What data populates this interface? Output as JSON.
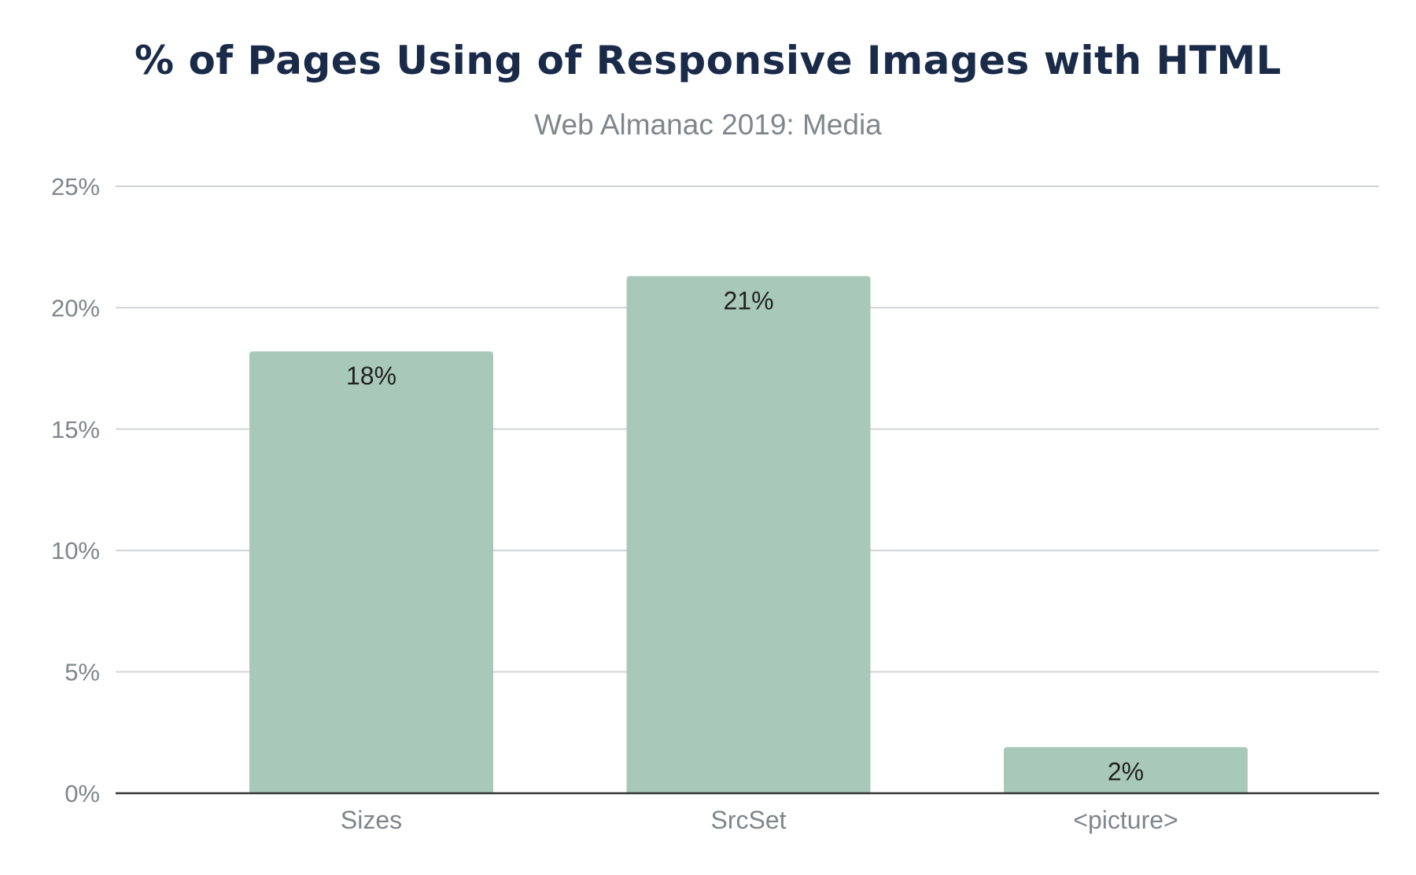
{
  "chart_data": {
    "type": "bar",
    "title": "% of Pages Using of Responsive Images with HTML",
    "subtitle": "Web Almanac 2019: Media",
    "categories": [
      "Sizes",
      "SrcSet",
      "<picture>"
    ],
    "values": [
      18.2,
      21.3,
      1.9
    ],
    "data_labels": [
      "18%",
      "21%",
      "2%"
    ],
    "yticks": [
      "0%",
      "5%",
      "10%",
      "15%",
      "20%",
      "25%"
    ],
    "ylim": [
      0,
      25
    ],
    "xlabel": "",
    "ylabel": "",
    "grid": true,
    "legend": "none",
    "colors": {
      "bar": "#a8c9b9",
      "title": "#1a2b49",
      "axis_text": "#80868b",
      "grid": "#d0d3d6",
      "baseline": "#333333",
      "data_label": "#222222"
    }
  }
}
